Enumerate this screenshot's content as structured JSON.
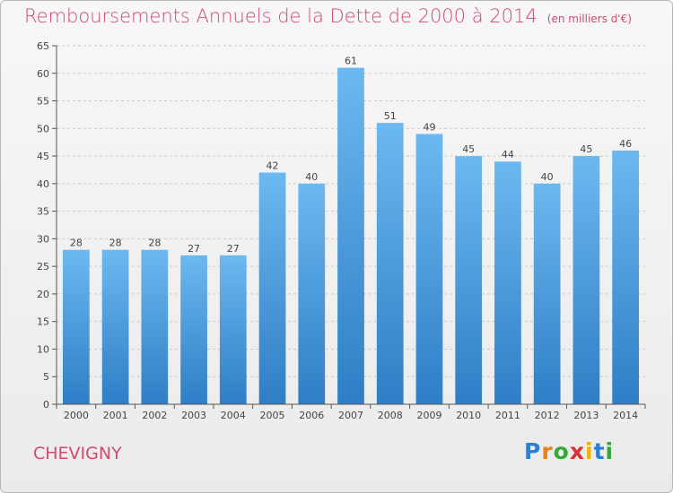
{
  "header": {
    "title": "Remboursements Annuels de la Dette de 2000 à 2014",
    "unit": "(en milliers d'€)"
  },
  "footer": {
    "commune": "CHEVIGNY",
    "logo": {
      "letters": [
        "P",
        "r",
        "o",
        "x",
        "i",
        "t",
        "i"
      ],
      "colors": [
        "#2e7fd0",
        "#e8801c",
        "#3aa53a",
        "#d93030",
        "#f0b400",
        "#2e7fd0",
        "#3aa53a"
      ]
    }
  },
  "colors": {
    "title": "#d24a6e",
    "bar_top": "#6cb8f0",
    "bar_bottom": "#2f7ec6",
    "grid": "#c9c9c9",
    "axis": "#555555"
  },
  "chart_data": {
    "type": "bar",
    "title": "Remboursements Annuels de la Dette de 2000 à 2014",
    "subtitle": "(en milliers d'€)",
    "xlabel": "",
    "ylabel": "",
    "categories": [
      "2000",
      "2001",
      "2002",
      "2003",
      "2004",
      "2005",
      "2006",
      "2007",
      "2008",
      "2009",
      "2010",
      "2011",
      "2012",
      "2013",
      "2014"
    ],
    "values": [
      28,
      28,
      28,
      27,
      27,
      42,
      40,
      61,
      51,
      49,
      45,
      44,
      40,
      45,
      46
    ],
    "ylim": [
      0,
      65
    ],
    "yticks": [
      0,
      5,
      10,
      15,
      20,
      25,
      30,
      35,
      40,
      45,
      50,
      55,
      60,
      65
    ],
    "grid": "horizontal dashed",
    "data_labels": true
  }
}
